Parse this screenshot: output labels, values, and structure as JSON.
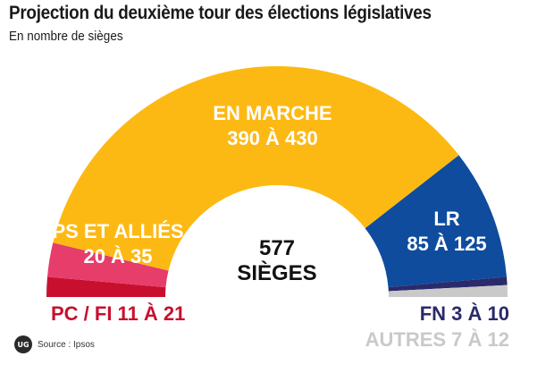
{
  "title": "Projection du deuxième tour des élections législatives",
  "subtitle": "En nombre de sièges",
  "source": "Source : Ipsos",
  "logo_text": "UG",
  "center": {
    "line1": "577",
    "line2": "SIÈGES"
  },
  "colors": {
    "en_marche": "#fdb913",
    "ps": "#e63d6b",
    "pc_fi": "#c8102e",
    "lr": "#0f4c9e",
    "fn": "#2b2a6b",
    "autres": "#c9c9c9"
  },
  "chart_data": {
    "type": "pie",
    "total_seats": 577,
    "segments": [
      {
        "name": "PC / FI",
        "label": "PC / FI 11 À 21",
        "seats": 16,
        "range": [
          11,
          21
        ],
        "color": "#c8102e"
      },
      {
        "name": "PS ET ALLIÉS",
        "label_lines": [
          "PS ET ALLIÉS",
          "20 À 35"
        ],
        "seats": 27.5,
        "range": [
          20,
          35
        ],
        "color": "#e63d6b"
      },
      {
        "name": "EN MARCHE",
        "label_lines": [
          "EN MARCHE",
          "390 À 430"
        ],
        "seats": 410,
        "range": [
          390,
          430
        ],
        "color": "#fdb913"
      },
      {
        "name": "LR",
        "label_lines": [
          "LR",
          "85 À 125"
        ],
        "seats": 105,
        "range": [
          85,
          125
        ],
        "color": "#0f4c9e"
      },
      {
        "name": "FN",
        "label": "FN 3 À 10",
        "seats": 6.5,
        "range": [
          3,
          10
        ],
        "color": "#2b2a6b"
      },
      {
        "name": "AUTRES",
        "label": "AUTRES 7 À 12",
        "seats": 9.5,
        "range": [
          7,
          12
        ],
        "color": "#c9c9c9"
      }
    ]
  }
}
